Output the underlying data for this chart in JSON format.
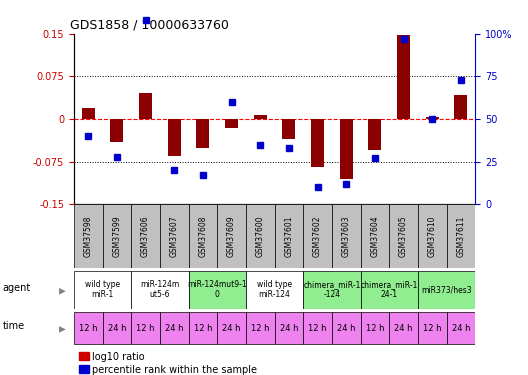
{
  "title": "GDS1858 / 10000633760",
  "samples": [
    "GSM37598",
    "GSM37599",
    "GSM37606",
    "GSM37607",
    "GSM37608",
    "GSM37609",
    "GSM37600",
    "GSM37601",
    "GSM37602",
    "GSM37603",
    "GSM37604",
    "GSM37605",
    "GSM37610",
    "GSM37611"
  ],
  "log10_ratio": [
    0.02,
    -0.04,
    0.045,
    -0.065,
    -0.05,
    -0.015,
    0.008,
    -0.035,
    -0.085,
    -0.105,
    -0.055,
    0.148,
    0.003,
    0.042
  ],
  "percentile": [
    40,
    28,
    108,
    20,
    17,
    60,
    35,
    33,
    10,
    12,
    27,
    97,
    50,
    73
  ],
  "ylim_left": [
    -0.15,
    0.15
  ],
  "ylim_right": [
    0,
    100
  ],
  "yticks_left": [
    -0.15,
    -0.075,
    0,
    0.075,
    0.15
  ],
  "yticks_right": [
    0,
    25,
    50,
    75,
    100
  ],
  "agents": [
    {
      "label": "wild type\nmiR-1",
      "start": 0,
      "end": 2,
      "color": "#ffffff"
    },
    {
      "label": "miR-124m\nut5-6",
      "start": 2,
      "end": 4,
      "color": "#ffffff"
    },
    {
      "label": "miR-124mut9-1\n0",
      "start": 4,
      "end": 6,
      "color": "#90ee90"
    },
    {
      "label": "wild type\nmiR-124",
      "start": 6,
      "end": 8,
      "color": "#ffffff"
    },
    {
      "label": "chimera_miR-1\n-124",
      "start": 8,
      "end": 10,
      "color": "#90ee90"
    },
    {
      "label": "chimera_miR-1\n24-1",
      "start": 10,
      "end": 12,
      "color": "#90ee90"
    },
    {
      "label": "miR373/hes3",
      "start": 12,
      "end": 14,
      "color": "#90ee90"
    }
  ],
  "times": [
    "12 h",
    "24 h",
    "12 h",
    "24 h",
    "12 h",
    "24 h",
    "12 h",
    "24 h",
    "12 h",
    "24 h",
    "12 h",
    "24 h",
    "12 h",
    "24 h"
  ],
  "time_color": "#ee82ee",
  "bar_color": "#8b0000",
  "dot_color": "#0000cd",
  "grid_color": "#000000",
  "axis_left_color": "#cc0000",
  "axis_right_color": "#0000cc",
  "hline_color": "#ff0000",
  "sample_bg_color": "#c0c0c0",
  "legend_bar_color": "#cc0000",
  "legend_dot_color": "#0000cc"
}
